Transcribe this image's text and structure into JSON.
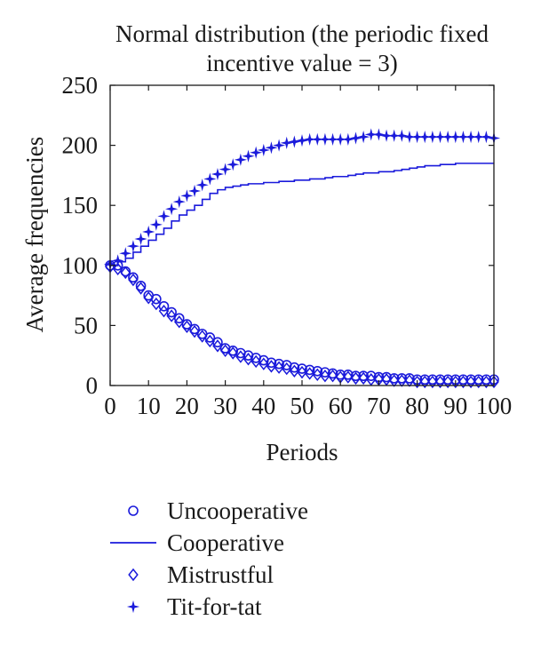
{
  "chart_data": {
    "type": "line",
    "title_lines": [
      "Normal distribution (the periodic fixed",
      "incentive value = 3)"
    ],
    "xlabel": "Periods",
    "ylabel": "Average frequencies",
    "xlim": [
      0,
      100
    ],
    "ylim": [
      0,
      250
    ],
    "xticks": [
      "0",
      "10",
      "20",
      "30",
      "40",
      "50",
      "60",
      "70",
      "80",
      "90",
      "100"
    ],
    "yticks": [
      "0",
      "50",
      "100",
      "150",
      "200",
      "250"
    ],
    "grid": false,
    "legend_position": "below",
    "series_color": "#1a1adb",
    "series": [
      {
        "name": "Uncooperative",
        "marker": "circle",
        "x": [
          0,
          2,
          4,
          6,
          8,
          10,
          12,
          14,
          16,
          18,
          20,
          22,
          24,
          26,
          28,
          30,
          32,
          34,
          36,
          38,
          40,
          42,
          44,
          46,
          48,
          50,
          52,
          54,
          56,
          58,
          60,
          62,
          64,
          66,
          68,
          70,
          72,
          74,
          76,
          78,
          80,
          82,
          84,
          86,
          88,
          90,
          92,
          94,
          96,
          98,
          100
        ],
        "y": [
          100,
          100,
          95,
          90,
          83,
          75,
          72,
          66,
          61,
          56,
          51,
          47,
          43,
          40,
          36,
          31,
          29,
          27,
          25,
          23,
          21,
          19,
          18,
          17,
          15,
          14,
          13,
          12,
          11,
          10,
          9,
          9,
          8,
          8,
          8,
          7,
          7,
          6,
          6,
          6,
          5,
          5,
          5,
          5,
          5,
          5,
          5,
          5,
          5,
          5,
          5
        ]
      },
      {
        "name": "Cooperative",
        "marker": "line",
        "x": [
          0,
          2,
          4,
          6,
          8,
          10,
          12,
          14,
          16,
          18,
          20,
          22,
          24,
          26,
          28,
          30,
          32,
          34,
          36,
          38,
          40,
          42,
          44,
          46,
          48,
          50,
          52,
          54,
          56,
          58,
          60,
          62,
          64,
          66,
          68,
          70,
          72,
          74,
          76,
          78,
          80,
          82,
          84,
          86,
          88,
          90,
          92,
          94,
          96,
          98,
          100
        ],
        "y": [
          100,
          103,
          106,
          111,
          116,
          121,
          126,
          131,
          137,
          142,
          146,
          150,
          155,
          160,
          163,
          165,
          166,
          167,
          168,
          168,
          169,
          169,
          170,
          170,
          171,
          171,
          172,
          172,
          173,
          174,
          174,
          175,
          176,
          177,
          177,
          178,
          178,
          179,
          180,
          181,
          182,
          183,
          183,
          184,
          184,
          185,
          185,
          185,
          185,
          185,
          185
        ]
      },
      {
        "name": "Mistrustful",
        "marker": "diamond",
        "x": [
          0,
          2,
          4,
          6,
          8,
          10,
          12,
          14,
          16,
          18,
          20,
          22,
          24,
          26,
          28,
          30,
          32,
          34,
          36,
          38,
          40,
          42,
          44,
          46,
          48,
          50,
          52,
          54,
          56,
          58,
          60,
          62,
          64,
          66,
          68,
          70,
          72,
          74,
          76,
          78,
          80,
          82,
          84,
          86,
          88,
          90,
          92,
          94,
          96,
          98,
          100
        ],
        "y": [
          99,
          97,
          94,
          88,
          81,
          73,
          68,
          62,
          58,
          53,
          49,
          45,
          41,
          37,
          33,
          29,
          27,
          24,
          22,
          20,
          18,
          16,
          15,
          14,
          12,
          11,
          10,
          9,
          8,
          8,
          7,
          7,
          6,
          6,
          5,
          5,
          5,
          4,
          4,
          4,
          3,
          3,
          3,
          3,
          3,
          3,
          3,
          3,
          3,
          3,
          3
        ]
      },
      {
        "name": "Tit-for-tat",
        "marker": "star",
        "x": [
          0,
          2,
          4,
          6,
          8,
          10,
          12,
          14,
          16,
          18,
          20,
          22,
          24,
          26,
          28,
          30,
          32,
          34,
          36,
          38,
          40,
          42,
          44,
          46,
          48,
          50,
          52,
          54,
          56,
          58,
          60,
          62,
          64,
          66,
          68,
          70,
          72,
          74,
          76,
          78,
          80,
          82,
          84,
          86,
          88,
          90,
          92,
          94,
          96,
          98,
          100
        ],
        "y": [
          101,
          104,
          110,
          116,
          122,
          128,
          134,
          141,
          147,
          153,
          158,
          162,
          167,
          172,
          176,
          180,
          184,
          188,
          191,
          194,
          196,
          198,
          200,
          202,
          203,
          204,
          205,
          205,
          205,
          205,
          205,
          205,
          206,
          207,
          209,
          209,
          208,
          208,
          208,
          207,
          207,
          207,
          207,
          207,
          207,
          207,
          207,
          207,
          207,
          207,
          206
        ]
      }
    ]
  }
}
